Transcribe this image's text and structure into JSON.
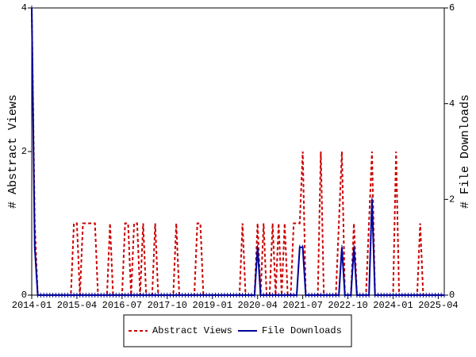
{
  "chart_data": {
    "type": "line",
    "ylabel": "# Abstract Views",
    "y2label": "# File Downloads",
    "x": [
      "2014-01",
      "2014-02",
      "2014-03",
      "2014-04",
      "2014-05",
      "2014-06",
      "2014-07",
      "2014-08",
      "2014-09",
      "2014-10",
      "2014-11",
      "2014-12",
      "2015-01",
      "2015-02",
      "2015-03",
      "2015-04",
      "2015-05",
      "2015-06",
      "2015-07",
      "2015-08",
      "2015-09",
      "2015-10",
      "2015-11",
      "2015-12",
      "2016-01",
      "2016-02",
      "2016-03",
      "2016-04",
      "2016-05",
      "2016-06",
      "2016-07",
      "2016-08",
      "2016-09",
      "2016-10",
      "2016-11",
      "2016-12",
      "2017-01",
      "2017-02",
      "2017-03",
      "2017-04",
      "2017-05",
      "2017-06",
      "2017-07",
      "2017-08",
      "2017-09",
      "2017-10",
      "2017-11",
      "2017-12",
      "2018-01",
      "2018-02",
      "2018-03",
      "2018-04",
      "2018-05",
      "2018-06",
      "2018-07",
      "2018-08",
      "2018-09",
      "2018-10",
      "2018-11",
      "2018-12",
      "2019-01",
      "2019-02",
      "2019-03",
      "2019-04",
      "2019-05",
      "2019-06",
      "2019-07",
      "2019-08",
      "2019-09",
      "2019-10",
      "2019-11",
      "2019-12",
      "2020-01",
      "2020-02",
      "2020-03",
      "2020-04",
      "2020-05",
      "2020-06",
      "2020-07",
      "2020-08",
      "2020-09",
      "2020-10",
      "2020-11",
      "2020-12",
      "2021-01",
      "2021-02",
      "2021-03",
      "2021-04",
      "2021-05",
      "2021-06",
      "2021-07",
      "2021-08",
      "2021-09",
      "2021-10",
      "2021-11",
      "2021-12",
      "2022-01",
      "2022-02",
      "2022-03",
      "2022-04",
      "2022-05",
      "2022-06",
      "2022-07",
      "2022-08",
      "2022-09",
      "2022-10",
      "2022-11",
      "2022-12",
      "2023-01",
      "2023-02",
      "2023-03",
      "2023-04",
      "2023-05",
      "2023-06",
      "2023-07",
      "2023-08",
      "2023-09",
      "2023-10",
      "2023-11",
      "2023-12",
      "2024-01",
      "2024-02",
      "2024-03",
      "2024-04",
      "2024-05",
      "2024-06",
      "2024-07",
      "2024-08",
      "2024-09",
      "2024-10",
      "2024-11",
      "2024-12",
      "2025-01",
      "2025-02",
      "2025-03",
      "2025-04",
      "2025-05",
      "2025-06"
    ],
    "xticks": [
      "2014-01",
      "2015-04",
      "2016-07",
      "2017-10",
      "2019-01",
      "2020-04",
      "2021-07",
      "2022-10",
      "2024-01",
      "2025-04"
    ],
    "ylim": [
      0,
      4
    ],
    "yticks": [
      0,
      2,
      4
    ],
    "y2lim": [
      0,
      6
    ],
    "y2ticks": [
      0,
      2,
      4,
      6
    ],
    "series": [
      {
        "name": "Abstract Views",
        "color": "#cc0000",
        "line_style": "dashed",
        "axis": "y",
        "values": [
          4,
          1,
          0,
          0,
          0,
          0,
          0,
          0,
          0,
          0,
          0,
          0,
          0,
          0,
          1,
          1,
          0,
          1,
          1,
          1,
          1,
          1,
          0,
          0,
          0,
          0,
          1,
          0,
          0,
          0,
          0,
          1,
          1,
          0,
          1,
          1,
          0,
          1,
          0,
          0,
          0,
          1,
          0,
          0,
          0,
          0,
          0,
          0,
          1,
          0,
          0,
          0,
          0,
          0,
          0,
          1,
          1,
          0,
          0,
          0,
          0,
          0,
          0,
          0,
          0,
          0,
          0,
          0,
          0,
          0,
          1,
          0,
          0,
          0,
          0,
          1,
          0,
          1,
          0,
          0,
          1,
          0,
          1,
          0,
          1,
          0,
          0,
          1,
          1,
          1,
          2,
          0,
          0,
          0,
          0,
          0,
          2,
          0,
          0,
          0,
          0,
          0,
          1,
          2,
          0,
          0,
          0,
          1,
          0,
          0,
          0,
          0,
          1,
          2,
          0,
          0,
          0,
          0,
          0,
          0,
          0,
          2,
          0,
          0,
          0,
          0,
          0,
          0,
          0,
          1,
          0,
          0,
          0,
          0,
          0,
          0,
          0,
          0
        ]
      },
      {
        "name": "File Downloads",
        "color": "#000099",
        "line_style": "solid",
        "axis": "y2",
        "values": [
          6,
          1,
          0,
          0,
          0,
          0,
          0,
          0,
          0,
          0,
          0,
          0,
          0,
          0,
          0,
          0,
          0,
          0,
          0,
          0,
          0,
          0,
          0,
          0,
          0,
          0,
          0,
          0,
          0,
          0,
          0,
          0,
          0,
          0,
          0,
          0,
          0,
          0,
          0,
          0,
          0,
          0,
          0,
          0,
          0,
          0,
          0,
          0,
          0,
          0,
          0,
          0,
          0,
          0,
          0,
          0,
          0,
          0,
          0,
          0,
          0,
          0,
          0,
          0,
          0,
          0,
          0,
          0,
          0,
          0,
          0,
          0,
          0,
          0,
          0,
          1,
          0,
          0,
          0,
          0,
          0,
          0,
          0,
          0,
          0,
          0,
          0,
          0,
          0,
          1,
          1,
          0,
          0,
          0,
          0,
          0,
          0,
          0,
          0,
          0,
          0,
          0,
          0,
          1,
          0,
          0,
          0,
          1,
          0,
          0,
          0,
          0,
          0,
          2,
          0,
          0,
          0,
          0,
          0,
          0,
          0,
          0,
          0,
          0,
          0,
          0,
          0,
          0,
          0,
          0,
          0,
          0,
          0,
          0,
          0,
          0,
          0,
          0
        ]
      }
    ],
    "legend": "bottom"
  }
}
